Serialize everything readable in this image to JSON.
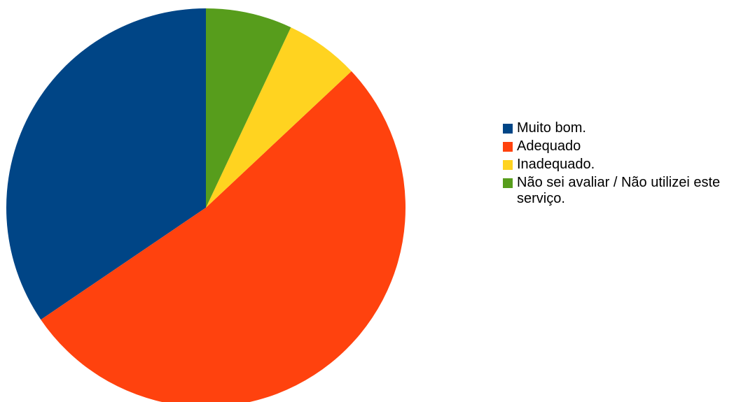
{
  "chart_data": {
    "type": "pie",
    "categories": [
      "Muito bom.",
      "Adequado",
      "Inadequado.",
      "Não sei avaliar / Não utilizei este serviço."
    ],
    "values": [
      34.5,
      52.5,
      6.0,
      7.0
    ],
    "colors": [
      "#004586",
      "#ff420e",
      "#ffd320",
      "#579d1c"
    ],
    "start_angle_deg": 0,
    "direction": "counterclockwise-from-top",
    "legend_position": "right"
  }
}
